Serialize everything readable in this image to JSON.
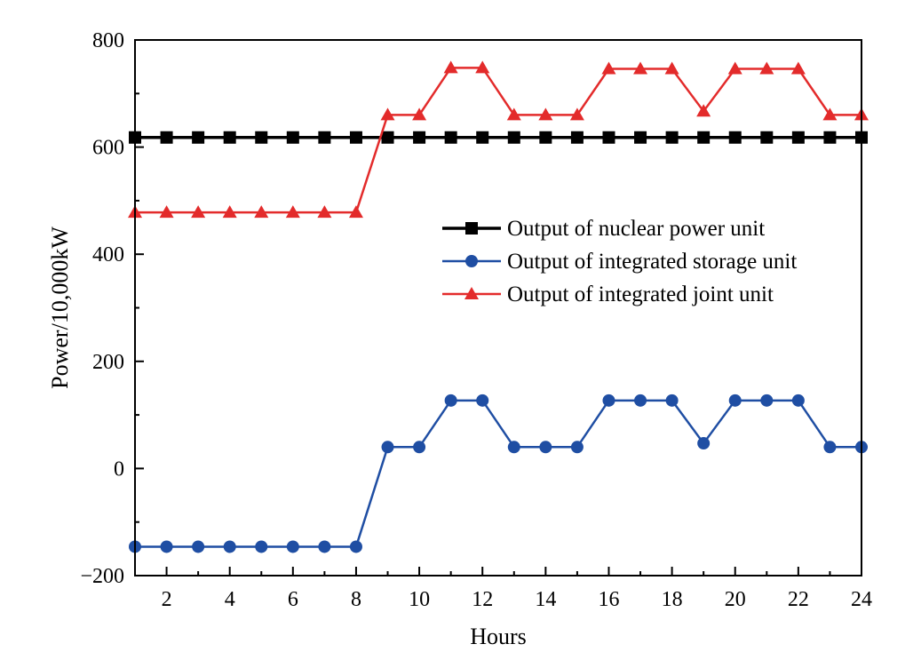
{
  "chart_data": {
    "type": "line",
    "title": "",
    "xlabel": "Hours",
    "ylabel": "Power/10,000kW",
    "xlim": [
      1,
      24
    ],
    "ylim": [
      -200,
      800
    ],
    "xticks": [
      2,
      4,
      6,
      8,
      10,
      12,
      14,
      16,
      18,
      20,
      22,
      24
    ],
    "xtick_labels": [
      "2",
      "4",
      "6",
      "8",
      "10",
      "12",
      "14",
      "16",
      "18",
      "20",
      "22",
      "24"
    ],
    "yticks": [
      -200,
      0,
      200,
      400,
      600,
      800
    ],
    "ytick_labels": [
      "−200",
      "0",
      "200",
      "400",
      "600",
      "800"
    ],
    "grid": false,
    "legend_position": "center-right",
    "x": [
      1,
      2,
      3,
      4,
      5,
      6,
      7,
      8,
      9,
      10,
      11,
      12,
      13,
      14,
      15,
      16,
      17,
      18,
      19,
      20,
      21,
      22,
      23,
      24
    ],
    "series": [
      {
        "name": "Output of nuclear power unit",
        "color": "#000000",
        "marker": "square",
        "values": [
          618,
          618,
          618,
          618,
          618,
          618,
          618,
          618,
          618,
          618,
          618,
          618,
          618,
          618,
          618,
          618,
          618,
          618,
          618,
          618,
          618,
          618,
          618,
          618
        ]
      },
      {
        "name": "Output of integrated storage unit",
        "color": "#1f4ea3",
        "marker": "circle",
        "values": [
          -146,
          -146,
          -146,
          -146,
          -146,
          -146,
          -146,
          -146,
          40,
          40,
          127,
          127,
          40,
          40,
          40,
          127,
          127,
          127,
          47,
          127,
          127,
          127,
          40,
          40
        ]
      },
      {
        "name": "Output of integrated joint unit",
        "color": "#e32b2b",
        "marker": "triangle",
        "values": [
          478,
          478,
          478,
          478,
          478,
          478,
          478,
          478,
          660,
          660,
          748,
          748,
          660,
          660,
          660,
          746,
          746,
          746,
          667,
          746,
          746,
          746,
          660,
          660
        ]
      }
    ]
  }
}
